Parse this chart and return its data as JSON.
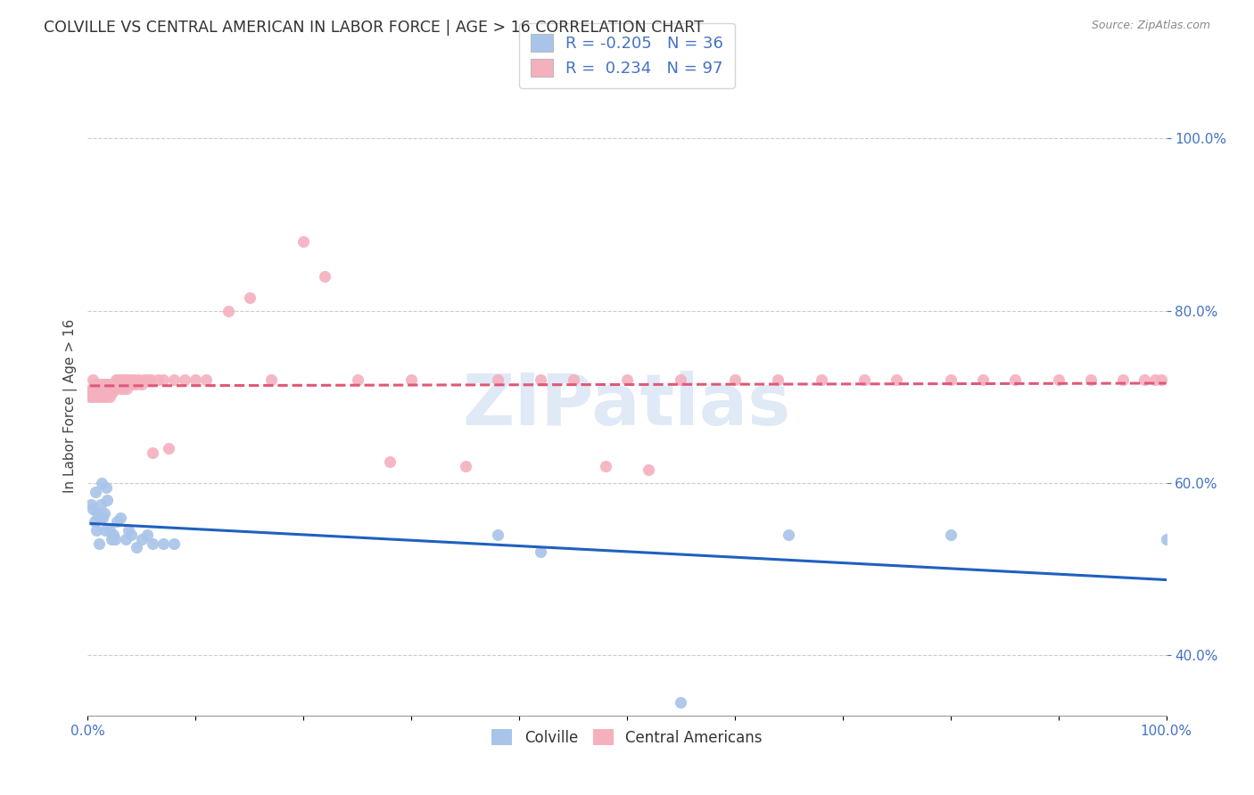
{
  "title": "COLVILLE VS CENTRAL AMERICAN IN LABOR FORCE | AGE > 16 CORRELATION CHART",
  "source": "Source: ZipAtlas.com",
  "ylabel": "In Labor Force | Age > 16",
  "colville_R": -0.205,
  "colville_N": 36,
  "central_R": 0.234,
  "central_N": 97,
  "colville_color": "#a8c4e8",
  "central_color": "#f5b0be",
  "colville_line_color": "#2060c0",
  "central_line_color": "#e05878",
  "central_line_dashed": true,
  "watermark": "ZIPatlas",
  "xlim": [
    0.0,
    1.0
  ],
  "ylim": [
    0.33,
    1.05
  ],
  "yticks": [
    0.4,
    0.6,
    0.8,
    1.0
  ],
  "xtick_positions": [
    0.0,
    0.1,
    0.2,
    0.3,
    0.4,
    0.5,
    0.6,
    0.7,
    0.8,
    0.9,
    1.0
  ],
  "colville_x": [
    0.003,
    0.005,
    0.006,
    0.007,
    0.008,
    0.009,
    0.01,
    0.011,
    0.012,
    0.013,
    0.014,
    0.015,
    0.016,
    0.017,
    0.018,
    0.02,
    0.022,
    0.024,
    0.025,
    0.027,
    0.03,
    0.035,
    0.038,
    0.04,
    0.045,
    0.05,
    0.055,
    0.06,
    0.07,
    0.08,
    0.38,
    0.42,
    0.55,
    0.65,
    0.8,
    1.0
  ],
  "colville_y": [
    0.575,
    0.57,
    0.555,
    0.59,
    0.545,
    0.565,
    0.53,
    0.56,
    0.575,
    0.6,
    0.56,
    0.565,
    0.545,
    0.595,
    0.58,
    0.545,
    0.535,
    0.54,
    0.535,
    0.555,
    0.56,
    0.535,
    0.545,
    0.54,
    0.525,
    0.535,
    0.54,
    0.53,
    0.53,
    0.53,
    0.54,
    0.52,
    0.345,
    0.54,
    0.54,
    0.535
  ],
  "central_x": [
    0.002,
    0.003,
    0.004,
    0.004,
    0.005,
    0.005,
    0.006,
    0.006,
    0.007,
    0.007,
    0.008,
    0.008,
    0.009,
    0.009,
    0.01,
    0.01,
    0.011,
    0.011,
    0.012,
    0.012,
    0.013,
    0.013,
    0.014,
    0.015,
    0.015,
    0.016,
    0.016,
    0.017,
    0.018,
    0.018,
    0.019,
    0.02,
    0.021,
    0.022,
    0.023,
    0.024,
    0.025,
    0.026,
    0.027,
    0.028,
    0.029,
    0.03,
    0.031,
    0.032,
    0.033,
    0.034,
    0.035,
    0.036,
    0.037,
    0.038,
    0.04,
    0.042,
    0.043,
    0.045,
    0.047,
    0.05,
    0.052,
    0.055,
    0.058,
    0.06,
    0.065,
    0.07,
    0.075,
    0.08,
    0.09,
    0.1,
    0.11,
    0.13,
    0.15,
    0.17,
    0.2,
    0.22,
    0.25,
    0.28,
    0.3,
    0.35,
    0.38,
    0.42,
    0.45,
    0.48,
    0.5,
    0.52,
    0.55,
    0.6,
    0.64,
    0.68,
    0.72,
    0.75,
    0.8,
    0.83,
    0.86,
    0.9,
    0.93,
    0.96,
    0.98,
    0.99,
    0.995
  ],
  "central_y": [
    0.7,
    0.7,
    0.71,
    0.7,
    0.71,
    0.72,
    0.705,
    0.715,
    0.7,
    0.71,
    0.7,
    0.715,
    0.7,
    0.71,
    0.7,
    0.71,
    0.705,
    0.715,
    0.7,
    0.71,
    0.705,
    0.715,
    0.705,
    0.7,
    0.71,
    0.705,
    0.715,
    0.7,
    0.71,
    0.715,
    0.705,
    0.7,
    0.715,
    0.71,
    0.705,
    0.715,
    0.71,
    0.72,
    0.715,
    0.72,
    0.715,
    0.71,
    0.72,
    0.715,
    0.71,
    0.72,
    0.715,
    0.71,
    0.72,
    0.715,
    0.72,
    0.715,
    0.72,
    0.715,
    0.72,
    0.715,
    0.72,
    0.72,
    0.72,
    0.635,
    0.72,
    0.72,
    0.64,
    0.72,
    0.72,
    0.72,
    0.72,
    0.8,
    0.815,
    0.72,
    0.88,
    0.84,
    0.72,
    0.625,
    0.72,
    0.62,
    0.72,
    0.72,
    0.72,
    0.62,
    0.72,
    0.615,
    0.72,
    0.72,
    0.72,
    0.72,
    0.72,
    0.72,
    0.72,
    0.72,
    0.72,
    0.72,
    0.72,
    0.72,
    0.72,
    0.72,
    0.72
  ]
}
